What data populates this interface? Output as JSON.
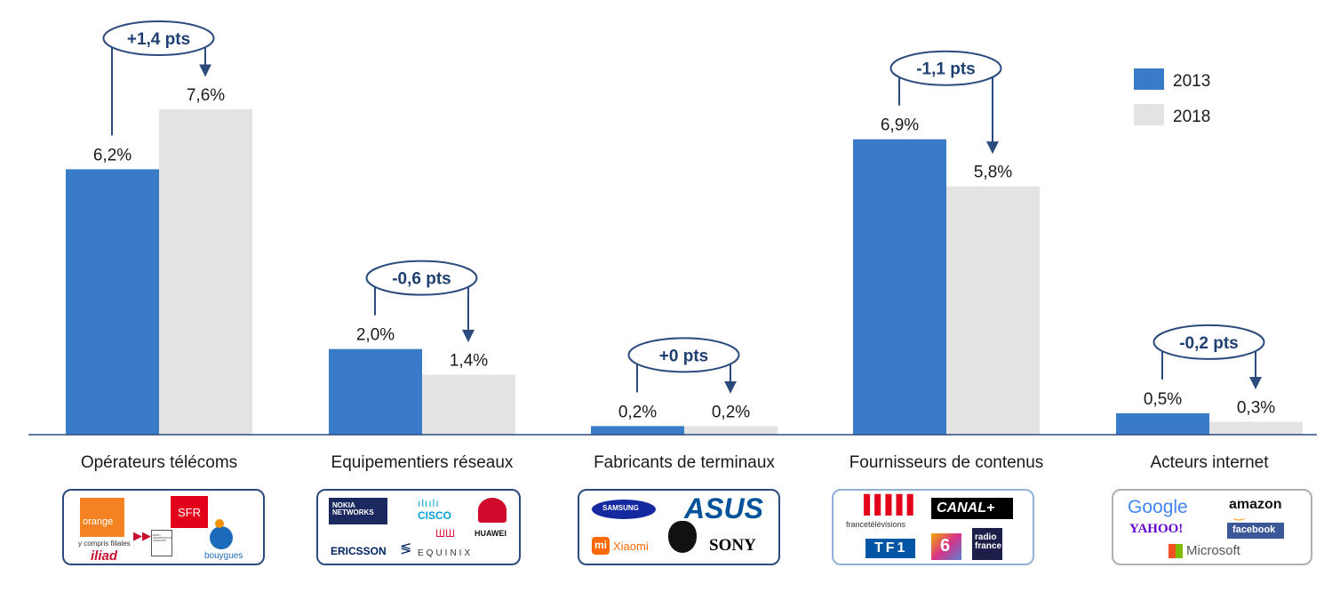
{
  "chart_data": {
    "type": "bar",
    "categories": [
      "Opérateurs télécoms",
      "Equipementiers réseaux",
      "Fabricants de terminaux",
      "Fournisseurs de contenus",
      "Acteurs internet"
    ],
    "series": [
      {
        "name": "2013",
        "values": [
          6.2,
          2.0,
          0.2,
          6.9,
          0.5
        ],
        "labels": [
          "6,2%",
          "2,0%",
          "0,2%",
          "6,9%",
          "0,5%"
        ],
        "color": "#3a7bc8"
      },
      {
        "name": "2018",
        "values": [
          7.6,
          1.4,
          0.2,
          5.8,
          0.3
        ],
        "labels": [
          "7,6%",
          "1,4%",
          "0,2%",
          "5,8%",
          "0,3%"
        ],
        "color": "#e3e3e3"
      }
    ],
    "annotations": [
      "+1,4 pts",
      "-0,6 pts",
      "+0 pts",
      "-1,1 pts",
      "-0,2 pts"
    ],
    "ylim": [
      0,
      7.6
    ],
    "grid": false,
    "legend": "top-right",
    "accent": "#2b4a7e"
  },
  "logos": {
    "telecoms": {
      "orange": "orange",
      "orange_sub": "y compris filiales",
      "sfr": "SFR",
      "iliad": "iliad",
      "euro": "EURO INFORMATION TELECOM",
      "bouygues": "bouygues"
    },
    "network": {
      "nokia": "NOKIA NETWORKS",
      "cisco": "CISCO",
      "huawei": "HUAWEI",
      "ericsson": "ERICSSON",
      "equinix": "EQUINIX"
    },
    "devices": {
      "samsung": "SAMSUNG",
      "asus": "ASUS",
      "mi": "mi",
      "xiaomi": "Xiaomi",
      "sony": "SONY"
    },
    "content": {
      "ftv": "francetélévisions",
      "canal": "CANAL+",
      "tf1": "TF1",
      "m6": "6",
      "radio": "radio france"
    },
    "internet": {
      "google": "Google",
      "amazon": "amazon",
      "yahoo": "YAHOO!",
      "facebook": "facebook",
      "microsoft": "Microsoft"
    }
  }
}
